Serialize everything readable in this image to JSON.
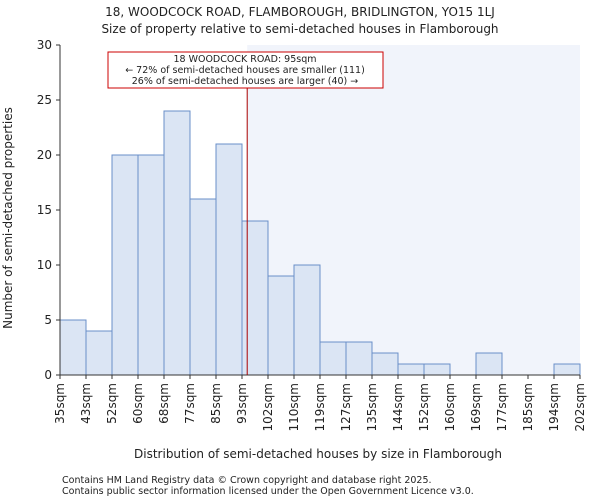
{
  "chart_data": {
    "type": "bar",
    "title": "18, WOODCOCK ROAD, FLAMBOROUGH, BRIDLINGTON, YO15 1LJ",
    "subtitle": "Size of property relative to semi-detached houses in Flamborough",
    "xlabel": "Distribution of semi-detached houses by size in Flamborough",
    "ylabel": "Number of semi-detached properties",
    "bin_edges": [
      "35sqm",
      "43sqm",
      "52sqm",
      "60sqm",
      "68sqm",
      "77sqm",
      "85sqm",
      "93sqm",
      "102sqm",
      "110sqm",
      "119sqm",
      "127sqm",
      "135sqm",
      "144sqm",
      "152sqm",
      "160sqm",
      "169sqm",
      "177sqm",
      "185sqm",
      "194sqm",
      "202sqm"
    ],
    "values": [
      5,
      4,
      20,
      20,
      24,
      16,
      21,
      14,
      9,
      10,
      3,
      3,
      2,
      1,
      1,
      0,
      2,
      0,
      0,
      1
    ],
    "ylim": [
      0,
      30
    ],
    "yticks": [
      0,
      5,
      10,
      15,
      20,
      25,
      30
    ],
    "marker": {
      "value_bin_position": 7.2,
      "value_label": "95sqm",
      "color": "#aa0000"
    },
    "annotation": {
      "lines": [
        "18 WOODCOCK ROAD: 95sqm",
        "← 72% of semi-detached houses are smaller (111)",
        "26% of semi-detached houses are larger (40) →"
      ]
    },
    "colors": {
      "bar_fill_smaller": "#dbe5f4",
      "bar_fill_larger": "#dbe5f4",
      "bar_stroke": "#6a8fc8",
      "shade_larger": "#f1f4fb",
      "annotation_border": "#cc0000"
    },
    "grid": false
  },
  "footer": {
    "line1": "Contains HM Land Registry data © Crown copyright and database right 2025.",
    "line2": "Contains public sector information licensed under the Open Government Licence v3.0."
  }
}
